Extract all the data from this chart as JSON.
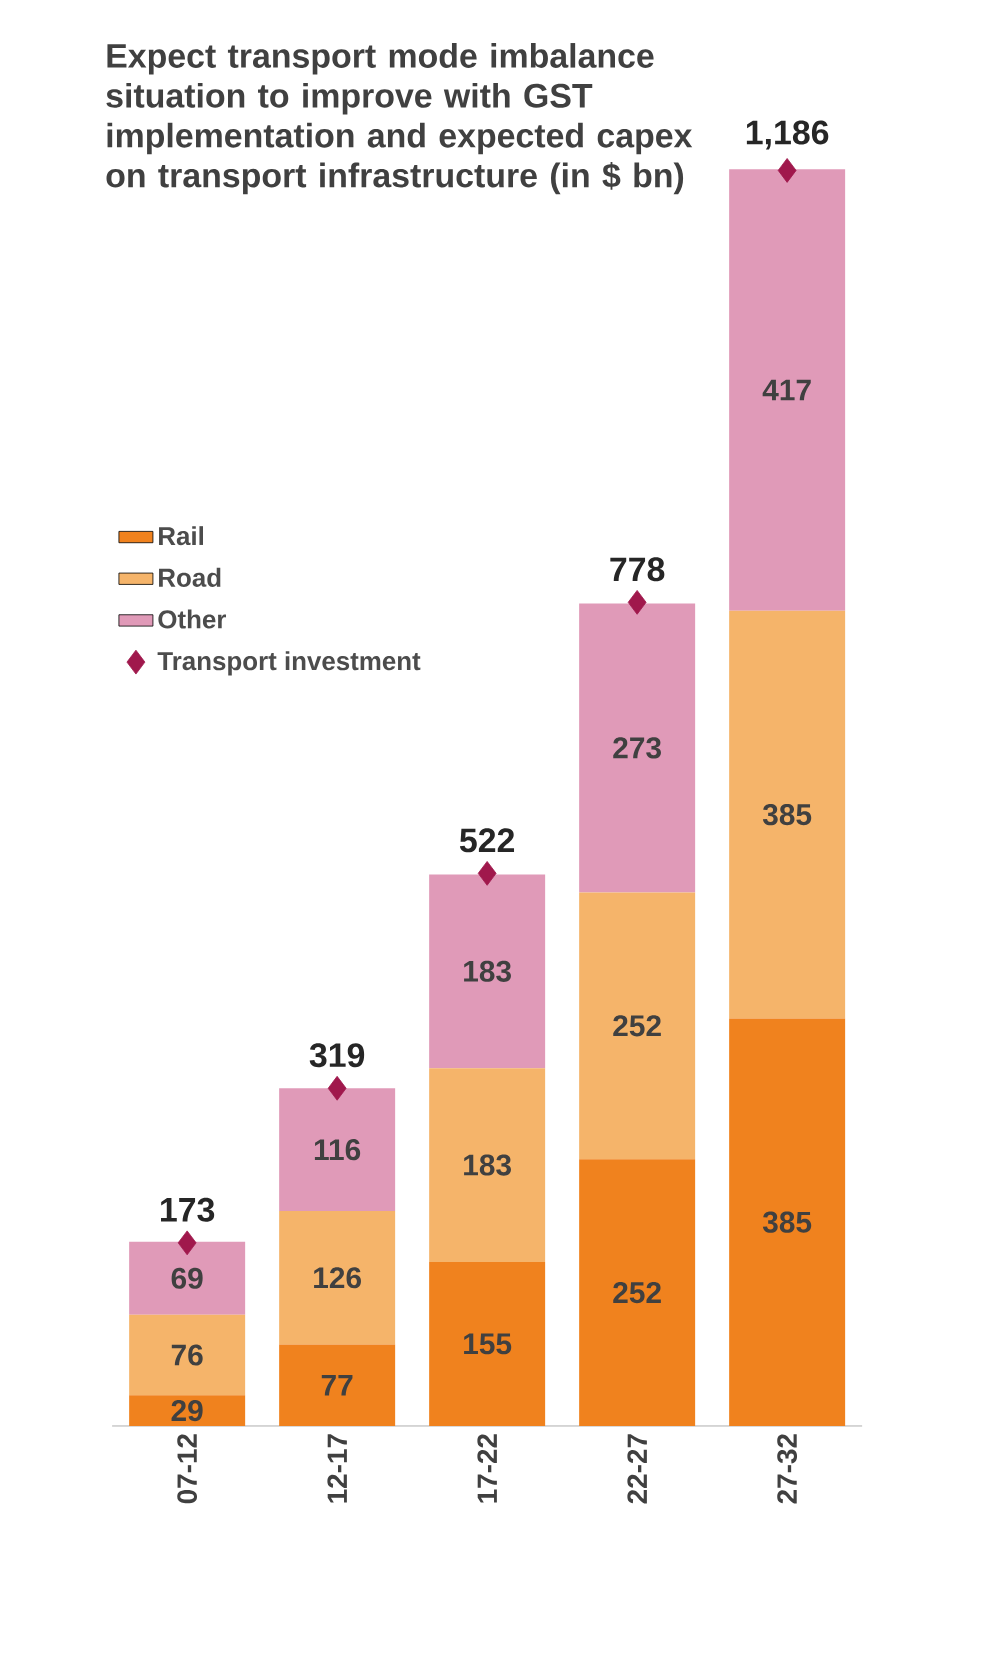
{
  "chart_data": {
    "type": "bar",
    "stacked": true,
    "title": "Expect transport mode imbalance situation to improve with GST implementation and expected capex on transport infrastructure (in $ bn)",
    "categories": [
      "07-12",
      "12-17",
      "17-22",
      "22-27",
      "27-32"
    ],
    "series": [
      {
        "name": "Rail",
        "color": "#f0821e",
        "values": [
          29,
          77,
          155,
          252,
          385
        ]
      },
      {
        "name": "Road",
        "color": "#f5b46a",
        "values": [
          76,
          126,
          183,
          252,
          385
        ]
      },
      {
        "name": "Other",
        "color": "#e09ab8",
        "values": [
          69,
          116,
          183,
          273,
          417
        ]
      },
      {
        "name": "Transport investment",
        "type": "scatter",
        "color": "#a0184c",
        "marker": "diamond",
        "x": [
          "07-12",
          "12-17",
          "17-22",
          "22-27",
          "27-32"
        ],
        "values": [
          173,
          319,
          522,
          778,
          1186
        ],
        "value_labels": [
          "173",
          "319",
          "522",
          "778",
          "1,186"
        ]
      }
    ],
    "data_labels": true,
    "legend": "left",
    "tick_labels": "x"
  }
}
